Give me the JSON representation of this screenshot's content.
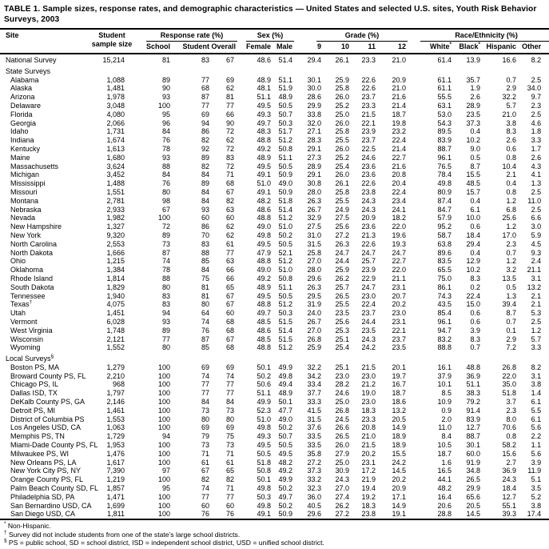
{
  "title": "TABLE 1. Sample sizes, response rates, and demographic characteristics — United States and selected U.S. sites, Youth Risk Behavior Surveys, 2003",
  "header": {
    "site": "Site",
    "sample_line1": "Student",
    "sample_line2": "sample size",
    "groups": [
      {
        "label": "Response rate (%)"
      },
      {
        "label": "Sex (%)"
      },
      {
        "label": "Grade (%)"
      },
      {
        "label": "Race/Ethnicity (%)"
      }
    ],
    "rr_cols": [
      "School",
      "Student",
      "Overall"
    ],
    "sex_cols": [
      "Female",
      "Male"
    ],
    "grade_cols": [
      "9",
      "10",
      "11",
      "12"
    ],
    "race_cols": [
      {
        "label": "White",
        "sup": "*"
      },
      {
        "label": "Black",
        "sup": "*"
      },
      {
        "label": "Hispanic",
        "sup": ""
      },
      {
        "label": "Other",
        "sup": ""
      }
    ]
  },
  "rows": [
    {
      "label": "National Survey",
      "indent": 0,
      "v": [
        "15,214",
        "81",
        "83",
        "67",
        "48.6",
        "51.4",
        "29.4",
        "26.1",
        "23.3",
        "21.0",
        "61.4",
        "13.9",
        "16.6",
        "8.2"
      ]
    },
    {
      "label": "State Surveys",
      "section": true
    },
    {
      "label": "Alabama",
      "indent": 1,
      "v": [
        "1,088",
        "89",
        "77",
        "69",
        "48.9",
        "51.1",
        "30.1",
        "25.9",
        "22.6",
        "20.9",
        "61.1",
        "35.7",
        "0.7",
        "2.5"
      ]
    },
    {
      "label": "Alaska",
      "indent": 1,
      "v": [
        "1,481",
        "90",
        "68",
        "62",
        "48.1",
        "51.9",
        "30.0",
        "25.8",
        "22.6",
        "21.0",
        "61.1",
        "1.9",
        "2.9",
        "34.0"
      ]
    },
    {
      "label": "Arizona",
      "indent": 1,
      "v": [
        "1,978",
        "93",
        "87",
        "81",
        "51.1",
        "48.9",
        "28.6",
        "26.0",
        "23.7",
        "21.6",
        "55.5",
        "2.6",
        "32.2",
        "9.7"
      ]
    },
    {
      "label": "Delaware",
      "indent": 1,
      "v": [
        "3,048",
        "100",
        "77",
        "77",
        "49.5",
        "50.5",
        "29.9",
        "25.2",
        "23.3",
        "21.4",
        "63.1",
        "28.9",
        "5.7",
        "2.3"
      ]
    },
    {
      "label": "Florida",
      "indent": 1,
      "v": [
        "4,080",
        "95",
        "69",
        "66",
        "49.3",
        "50.7",
        "33.8",
        "25.0",
        "21.5",
        "18.7",
        "53.0",
        "23.5",
        "21.0",
        "2.5"
      ]
    },
    {
      "label": "Georgia",
      "indent": 1,
      "v": [
        "2,066",
        "96",
        "94",
        "90",
        "49.7",
        "50.3",
        "32.0",
        "26.0",
        "22.1",
        "19.8",
        "54.3",
        "37.3",
        "3.8",
        "4.6"
      ]
    },
    {
      "label": "Idaho",
      "indent": 1,
      "v": [
        "1,731",
        "84",
        "86",
        "72",
        "48.3",
        "51.7",
        "27.1",
        "25.8",
        "23.9",
        "23.2",
        "89.5",
        "0.4",
        "8.3",
        "1.8"
      ]
    },
    {
      "label": "Indiana",
      "indent": 1,
      "v": [
        "1,674",
        "76",
        "82",
        "62",
        "48.8",
        "51.2",
        "28.3",
        "25.5",
        "23.7",
        "22.4",
        "83.9",
        "10.2",
        "2.6",
        "3.3"
      ]
    },
    {
      "label": "Kentucky",
      "indent": 1,
      "v": [
        "1,613",
        "78",
        "92",
        "72",
        "49.2",
        "50.8",
        "29.1",
        "26.0",
        "22.5",
        "21.4",
        "88.7",
        "9.0",
        "0.6",
        "1.7"
      ]
    },
    {
      "label": "Maine",
      "indent": 1,
      "v": [
        "1,680",
        "93",
        "89",
        "83",
        "48.9",
        "51.1",
        "27.3",
        "25.2",
        "24.6",
        "22.7",
        "96.1",
        "0.5",
        "0.8",
        "2.6"
      ]
    },
    {
      "label": "Massachusetts",
      "indent": 1,
      "v": [
        "3,624",
        "88",
        "82",
        "72",
        "49.5",
        "50.5",
        "28.9",
        "25.4",
        "23.6",
        "21.6",
        "76.5",
        "8.7",
        "10.4",
        "4.3"
      ]
    },
    {
      "label": "Michigan",
      "indent": 1,
      "v": [
        "3,452",
        "84",
        "84",
        "71",
        "49.1",
        "50.9",
        "29.1",
        "26.0",
        "23.6",
        "20.8",
        "78.4",
        "15.5",
        "2.1",
        "4.1"
      ]
    },
    {
      "label": "Mississippi",
      "indent": 1,
      "v": [
        "1,488",
        "76",
        "89",
        "68",
        "51.0",
        "49.0",
        "30.8",
        "26.1",
        "22.6",
        "20.4",
        "49.8",
        "48.5",
        "0.4",
        "1.3"
      ]
    },
    {
      "label": "Missouri",
      "indent": 1,
      "v": [
        "1,551",
        "80",
        "84",
        "67",
        "49.1",
        "50.9",
        "28.0",
        "25.8",
        "23.8",
        "22.4",
        "80.9",
        "15.7",
        "0.8",
        "2.5"
      ]
    },
    {
      "label": "Montana",
      "indent": 1,
      "v": [
        "2,781",
        "98",
        "84",
        "82",
        "48.2",
        "51.8",
        "26.3",
        "25.5",
        "24.3",
        "23.4",
        "87.4",
        "0.4",
        "1.2",
        "11.0"
      ]
    },
    {
      "label": "Nebraska",
      "indent": 1,
      "v": [
        "2,933",
        "67",
        "93",
        "63",
        "48.6",
        "51.4",
        "26.7",
        "24.9",
        "24.3",
        "24.1",
        "84.7",
        "6.1",
        "6.8",
        "2.5"
      ]
    },
    {
      "label": "Nevada",
      "indent": 1,
      "v": [
        "1,982",
        "100",
        "60",
        "60",
        "48.8",
        "51.2",
        "32.9",
        "27.5",
        "20.9",
        "18.2",
        "57.9",
        "10.0",
        "25.6",
        "6.6"
      ]
    },
    {
      "label": "New Hampshire",
      "indent": 1,
      "v": [
        "1,327",
        "72",
        "86",
        "62",
        "49.0",
        "51.0",
        "27.5",
        "25.6",
        "23.6",
        "22.0",
        "95.2",
        "0.6",
        "1.2",
        "3.0"
      ]
    },
    {
      "label": "New York",
      "indent": 1,
      "v": [
        "9,320",
        "89",
        "70",
        "62",
        "49.8",
        "50.2",
        "31.0",
        "27.2",
        "21.3",
        "19.6",
        "58.7",
        "18.4",
        "17.0",
        "5.9"
      ]
    },
    {
      "label": "North Carolina",
      "indent": 1,
      "v": [
        "2,553",
        "73",
        "83",
        "61",
        "49.5",
        "50.5",
        "31.5",
        "26.3",
        "22.6",
        "19.3",
        "63.8",
        "29.4",
        "2.3",
        "4.5"
      ]
    },
    {
      "label": "North Dakota",
      "indent": 1,
      "v": [
        "1,666",
        "87",
        "88",
        "77",
        "47.9",
        "52.1",
        "25.8",
        "24.7",
        "24.7",
        "24.7",
        "89.6",
        "0.4",
        "0.7",
        "9.3"
      ]
    },
    {
      "label": "Ohio",
      "indent": 1,
      "v": [
        "1,215",
        "74",
        "85",
        "63",
        "48.8",
        "51.2",
        "27.0",
        "24.4",
        "25.7",
        "22.7",
        "83.5",
        "12.9",
        "1.2",
        "2.4"
      ]
    },
    {
      "label": "Oklahoma",
      "indent": 1,
      "v": [
        "1,384",
        "78",
        "84",
        "66",
        "49.0",
        "51.0",
        "28.0",
        "25.9",
        "23.9",
        "22.0",
        "65.5",
        "10.2",
        "3.2",
        "21.1"
      ]
    },
    {
      "label": "Rhode Island",
      "indent": 1,
      "v": [
        "1,814",
        "88",
        "75",
        "66",
        "49.2",
        "50.8",
        "29.6",
        "26.2",
        "22.9",
        "21.1",
        "75.0",
        "8.3",
        "13.5",
        "3.1"
      ]
    },
    {
      "label": "South Dakota",
      "indent": 1,
      "v": [
        "1,829",
        "80",
        "81",
        "65",
        "48.9",
        "51.1",
        "26.3",
        "25.7",
        "24.7",
        "23.1",
        "86.1",
        "0.2",
        "0.5",
        "13.2"
      ]
    },
    {
      "label": "Tennessee",
      "indent": 1,
      "v": [
        "1,940",
        "83",
        "81",
        "67",
        "49.5",
        "50.5",
        "29.5",
        "26.5",
        "23.0",
        "20.7",
        "74.3",
        "22.4",
        "1.3",
        "2.1"
      ]
    },
    {
      "label": "Texas",
      "sup": "†",
      "indent": 1,
      "v": [
        "4,075",
        "83",
        "80",
        "67",
        "48.8",
        "51.2",
        "31.9",
        "25.5",
        "22.4",
        "20.2",
        "43.5",
        "15.0",
        "39.4",
        "2.1"
      ]
    },
    {
      "label": "Utah",
      "indent": 1,
      "v": [
        "1,451",
        "94",
        "64",
        "60",
        "49.7",
        "50.3",
        "24.0",
        "23.5",
        "23.7",
        "23.0",
        "85.4",
        "0.6",
        "8.7",
        "5.3"
      ]
    },
    {
      "label": "Vermont",
      "indent": 1,
      "v": [
        "6,028",
        "93",
        "74",
        "68",
        "48.5",
        "51.5",
        "26.7",
        "25.6",
        "24.4",
        "23.1",
        "96.1",
        "0.6",
        "0.7",
        "2.5"
      ]
    },
    {
      "label": "West Virginia",
      "indent": 1,
      "v": [
        "1,748",
        "89",
        "76",
        "68",
        "48.6",
        "51.4",
        "27.0",
        "25.3",
        "23.5",
        "22.1",
        "94.7",
        "3.9",
        "0.1",
        "1.2"
      ]
    },
    {
      "label": "Wisconsin",
      "indent": 1,
      "v": [
        "2,121",
        "77",
        "87",
        "67",
        "48.5",
        "51.5",
        "26.8",
        "25.1",
        "24.3",
        "23.7",
        "83.2",
        "8.3",
        "2.9",
        "5.7"
      ]
    },
    {
      "label": "Wyoming",
      "indent": 1,
      "v": [
        "1,552",
        "80",
        "85",
        "68",
        "48.8",
        "51.2",
        "25.9",
        "25.4",
        "24.2",
        "23.5",
        "88.8",
        "0.7",
        "7.2",
        "3.3"
      ]
    },
    {
      "label": "Local Surveys",
      "sup": "§",
      "section": true
    },
    {
      "label": "Boston PS, MA",
      "indent": 1,
      "v": [
        "1,279",
        "100",
        "69",
        "69",
        "50.1",
        "49.9",
        "32.2",
        "25.1",
        "21.5",
        "20.1",
        "16.1",
        "48.8",
        "26.8",
        "8.2"
      ]
    },
    {
      "label": "Broward County PS, FL",
      "indent": 1,
      "v": [
        "2,210",
        "100",
        "74",
        "74",
        "50.2",
        "49.8",
        "34.2",
        "23.0",
        "23.0",
        "19.7",
        "37.9",
        "36.9",
        "22.0",
        "3.1"
      ]
    },
    {
      "label": "Chicago PS, IL",
      "indent": 1,
      "v": [
        "968",
        "100",
        "77",
        "77",
        "50.6",
        "49.4",
        "33.4",
        "28.2",
        "21.2",
        "16.7",
        "10.1",
        "51.1",
        "35.0",
        "3.8"
      ]
    },
    {
      "label": "Dallas ISD, TX",
      "indent": 1,
      "v": [
        "1,797",
        "100",
        "77",
        "77",
        "51.1",
        "48.9",
        "37.7",
        "24.6",
        "19.0",
        "18.7",
        "8.5",
        "38.3",
        "51.8",
        "1.4"
      ]
    },
    {
      "label": "DeKalb County PS, GA",
      "indent": 1,
      "v": [
        "2,146",
        "100",
        "84",
        "84",
        "49.9",
        "50.1",
        "33.3",
        "25.0",
        "23.0",
        "18.6",
        "10.9",
        "79.2",
        "3.7",
        "6.1"
      ]
    },
    {
      "label": "Detroit PS, MI",
      "indent": 1,
      "v": [
        "1,461",
        "100",
        "73",
        "73",
        "52.3",
        "47.7",
        "41.5",
        "26.8",
        "18.3",
        "13.2",
        "0.9",
        "91.4",
        "2.3",
        "5.5"
      ]
    },
    {
      "label": "District of Columbia PS",
      "indent": 1,
      "v": [
        "1,553",
        "100",
        "80",
        "80",
        "51.0",
        "49.0",
        "31.5",
        "24.5",
        "23.3",
        "20.5",
        "2.0",
        "83.9",
        "8.0",
        "6.1"
      ]
    },
    {
      "label": "Los Angeles USD, CA",
      "indent": 1,
      "v": [
        "1,063",
        "100",
        "69",
        "69",
        "49.8",
        "50.2",
        "37.6",
        "26.6",
        "20.8",
        "14.9",
        "11.0",
        "12.7",
        "70.6",
        "5.6"
      ]
    },
    {
      "label": "Memphis PS, TN",
      "indent": 1,
      "v": [
        "1,729",
        "94",
        "79",
        "75",
        "49.3",
        "50.7",
        "33.5",
        "26.5",
        "21.0",
        "18.9",
        "8.4",
        "88.7",
        "0.8",
        "2.2"
      ]
    },
    {
      "label": "Miami-Dade County PS, FL",
      "indent": 1,
      "v": [
        "1,953",
        "100",
        "73",
        "73",
        "49.5",
        "50.5",
        "33.5",
        "26.0",
        "21.5",
        "18.9",
        "10.5",
        "30.1",
        "58.2",
        "1.1"
      ]
    },
    {
      "label": "Milwaukee PS, WI",
      "indent": 1,
      "v": [
        "1,476",
        "100",
        "71",
        "71",
        "50.5",
        "49.5",
        "35.8",
        "27.9",
        "20.2",
        "15.5",
        "18.7",
        "60.0",
        "15.6",
        "5.6"
      ]
    },
    {
      "label": "New Orleans PS, LA",
      "indent": 1,
      "v": [
        "1,617",
        "100",
        "61",
        "61",
        "51.8",
        "48.2",
        "27.2",
        "25.0",
        "23.1",
        "24.2",
        "1.6",
        "91.9",
        "2.7",
        "3.9"
      ]
    },
    {
      "label": "New York City PS, NY",
      "indent": 1,
      "v": [
        "7,390",
        "97",
        "67",
        "65",
        "50.8",
        "49.2",
        "37.3",
        "30.9",
        "17.2",
        "14.5",
        "16.5",
        "34.8",
        "36.9",
        "11.9"
      ]
    },
    {
      "label": "Orange County PS, FL",
      "indent": 1,
      "v": [
        "1,219",
        "100",
        "82",
        "82",
        "50.1",
        "49.9",
        "33.2",
        "24.3",
        "21.9",
        "20.2",
        "44.1",
        "26.5",
        "24.3",
        "5.1"
      ]
    },
    {
      "label": "Palm Beach County SD, FL",
      "indent": 1,
      "v": [
        "1,857",
        "95",
        "74",
        "71",
        "49.8",
        "50.2",
        "32.3",
        "27.0",
        "19.4",
        "20.9",
        "48.2",
        "29.9",
        "18.4",
        "3.5"
      ]
    },
    {
      "label": "Philadelphia SD, PA",
      "indent": 1,
      "v": [
        "1,471",
        "100",
        "77",
        "77",
        "50.3",
        "49.7",
        "36.0",
        "27.4",
        "19.2",
        "17.1",
        "16.4",
        "65.6",
        "12.7",
        "5.2"
      ]
    },
    {
      "label": "San Bernardino USD, CA",
      "indent": 1,
      "v": [
        "1,699",
        "100",
        "60",
        "60",
        "49.8",
        "50.2",
        "40.5",
        "26.2",
        "18.3",
        "14.9",
        "20.6",
        "20.5",
        "55.1",
        "3.8"
      ]
    },
    {
      "label": "San Diego USD, CA",
      "indent": 1,
      "v": [
        "1,811",
        "100",
        "76",
        "76",
        "49.1",
        "50.9",
        "29.6",
        "27.2",
        "23.8",
        "19.1",
        "28.8",
        "14.5",
        "39.3",
        "17.4"
      ]
    }
  ],
  "footnotes": [
    {
      "sup": "*",
      "text": " Non-Hispanic."
    },
    {
      "sup": "†",
      "text": " Survey did not include students from one of the state’s large school districts."
    },
    {
      "sup": "§",
      "text": " PS = public school, SD = school district, ISD = independent school district, USD = unified school district."
    }
  ]
}
